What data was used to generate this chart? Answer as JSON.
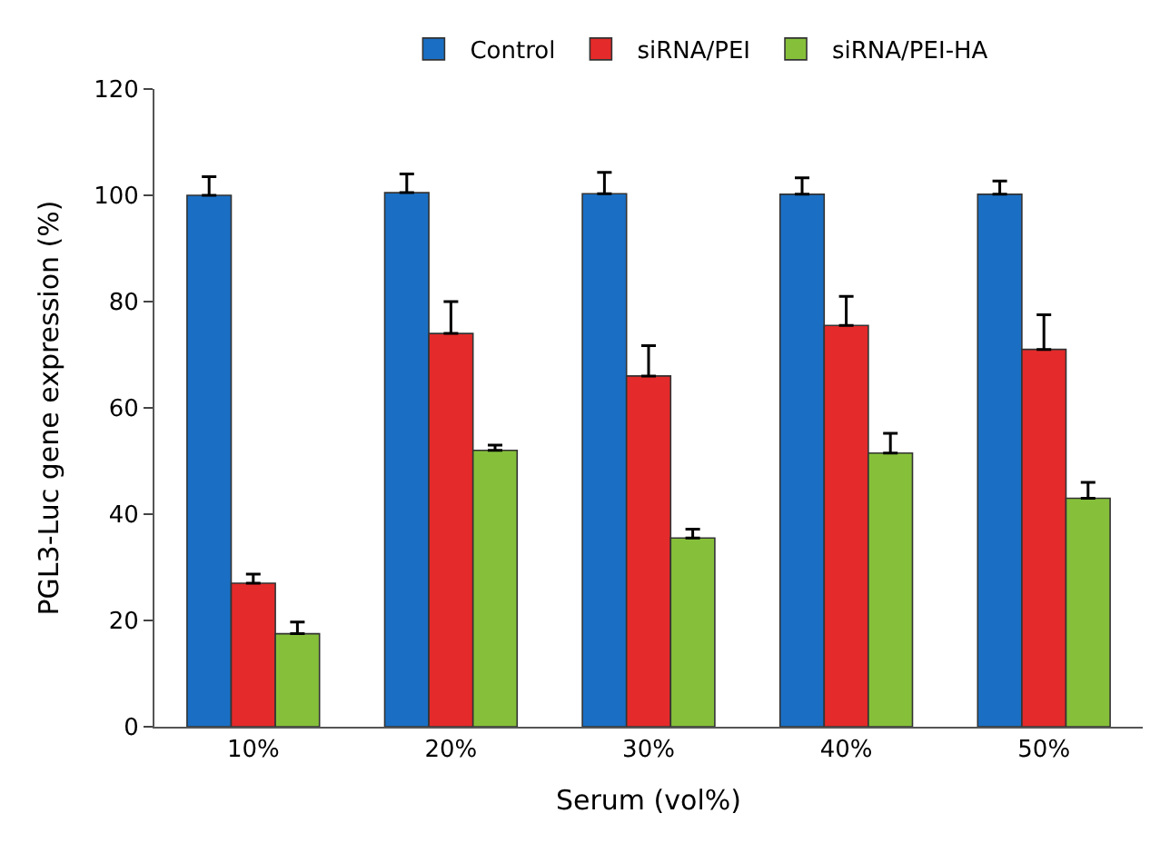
{
  "chart_data": {
    "type": "bar",
    "xlabel": "Serum (vol%)",
    "ylabel": "PGL3-Luc gene expression (%)",
    "categories": [
      "10%",
      "20%",
      "30%",
      "40%",
      "50%"
    ],
    "series": [
      {
        "name": "Control",
        "color": "#1a6fc4",
        "values": [
          100,
          100.5,
          100.3,
          100.2,
          100.2
        ],
        "errors": [
          [
            100,
            103.5
          ],
          [
            100.5,
            104
          ],
          [
            100.3,
            104.3
          ],
          [
            100.2,
            103.3
          ],
          [
            100.2,
            102.7
          ]
        ]
      },
      {
        "name": "siRNA/PEI",
        "color": "#e42a2a",
        "values": [
          27,
          74,
          66,
          75.5,
          71
        ],
        "errors": [
          [
            27,
            28.7
          ],
          [
            74,
            80
          ],
          [
            66,
            71.7
          ],
          [
            75.5,
            81
          ],
          [
            71,
            77.5
          ]
        ]
      },
      {
        "name": "siRNA/PEI-HA",
        "color": "#86c03a",
        "values": [
          17.5,
          52,
          35.5,
          51.5,
          43
        ],
        "errors": [
          [
            17.5,
            19.7
          ],
          [
            52,
            53
          ],
          [
            35.5,
            37.2
          ],
          [
            51.5,
            55.2
          ],
          [
            43,
            46
          ]
        ]
      }
    ],
    "ylim": [
      0,
      120
    ],
    "yticks": [
      0,
      20,
      40,
      60,
      80,
      100,
      120
    ],
    "legend": "top"
  }
}
